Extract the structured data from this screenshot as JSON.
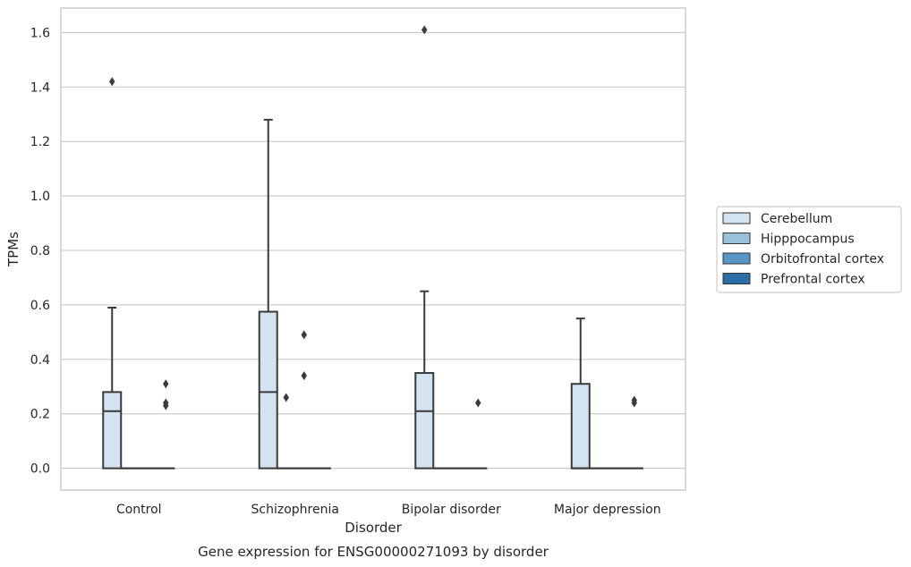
{
  "chart_data": {
    "type": "box",
    "xlabel": "Disorder",
    "ylabel": "TPMs",
    "caption": "Gene expression for ENSG00000271093 by disorder",
    "categories": [
      "Control",
      "Schizophrenia",
      "Bipolar disorder",
      "Major depression"
    ],
    "ylim": [
      -0.08,
      1.69
    ],
    "yticks": [
      0.0,
      0.2,
      0.4,
      0.6,
      0.8,
      1.0,
      1.2,
      1.4,
      1.6
    ],
    "grid": "horizontal",
    "legend": {
      "placement": "right"
    },
    "series": [
      {
        "name": "Cerebellum",
        "color": "#d4e3f1",
        "boxes": [
          {
            "q1": 0.0,
            "median": 0.21,
            "q3": 0.28,
            "whislo": 0.0,
            "whishi": 0.59,
            "fliers": [
              1.42
            ]
          },
          {
            "q1": 0.0,
            "median": 0.28,
            "q3": 0.575,
            "whislo": 0.0,
            "whishi": 1.28,
            "fliers": []
          },
          {
            "q1": 0.0,
            "median": 0.21,
            "q3": 0.35,
            "whislo": 0.0,
            "whishi": 0.65,
            "fliers": [
              1.61
            ]
          },
          {
            "q1": 0.0,
            "median": 0.0,
            "q3": 0.31,
            "whislo": 0.0,
            "whishi": 0.55,
            "fliers": []
          }
        ]
      },
      {
        "name": "Hipppocampus",
        "color": "#9ac1dc",
        "boxes": [
          {
            "q1": 0.0,
            "median": 0.0,
            "q3": 0.0,
            "whislo": 0.0,
            "whishi": 0.0,
            "fliers": []
          },
          {
            "q1": 0.0,
            "median": 0.0,
            "q3": 0.0,
            "whislo": 0.0,
            "whishi": 0.0,
            "fliers": [
              0.26
            ]
          },
          {
            "q1": 0.0,
            "median": 0.0,
            "q3": 0.0,
            "whislo": 0.0,
            "whishi": 0.0,
            "fliers": []
          },
          {
            "q1": 0.0,
            "median": 0.0,
            "q3": 0.0,
            "whislo": 0.0,
            "whishi": 0.0,
            "fliers": []
          }
        ]
      },
      {
        "name": "Orbitofrontal cortex",
        "color": "#5a96c5",
        "boxes": [
          {
            "q1": 0.0,
            "median": 0.0,
            "q3": 0.0,
            "whislo": 0.0,
            "whishi": 0.0,
            "fliers": []
          },
          {
            "q1": 0.0,
            "median": 0.0,
            "q3": 0.0,
            "whislo": 0.0,
            "whishi": 0.0,
            "fliers": [
              0.34,
              0.49
            ]
          },
          {
            "q1": 0.0,
            "median": 0.0,
            "q3": 0.0,
            "whislo": 0.0,
            "whishi": 0.0,
            "fliers": []
          },
          {
            "q1": 0.0,
            "median": 0.0,
            "q3": 0.0,
            "whislo": 0.0,
            "whishi": 0.0,
            "fliers": []
          }
        ]
      },
      {
        "name": "Prefrontal cortex",
        "color": "#2d6da6",
        "boxes": [
          {
            "q1": 0.0,
            "median": 0.0,
            "q3": 0.0,
            "whislo": 0.0,
            "whishi": 0.0,
            "fliers": [
              0.23,
              0.24,
              0.31
            ]
          },
          {
            "q1": 0.0,
            "median": 0.0,
            "q3": 0.0,
            "whislo": 0.0,
            "whishi": 0.0,
            "fliers": []
          },
          {
            "q1": 0.0,
            "median": 0.0,
            "q3": 0.0,
            "whislo": 0.0,
            "whishi": 0.0,
            "fliers": [
              0.24
            ]
          },
          {
            "q1": 0.0,
            "median": 0.0,
            "q3": 0.0,
            "whislo": 0.0,
            "whishi": 0.0,
            "fliers": [
              0.24,
              0.25
            ]
          }
        ]
      }
    ]
  },
  "colors": {
    "line": "#3a3a3a",
    "grid": "#cccccc",
    "frame": "#cccccc"
  }
}
